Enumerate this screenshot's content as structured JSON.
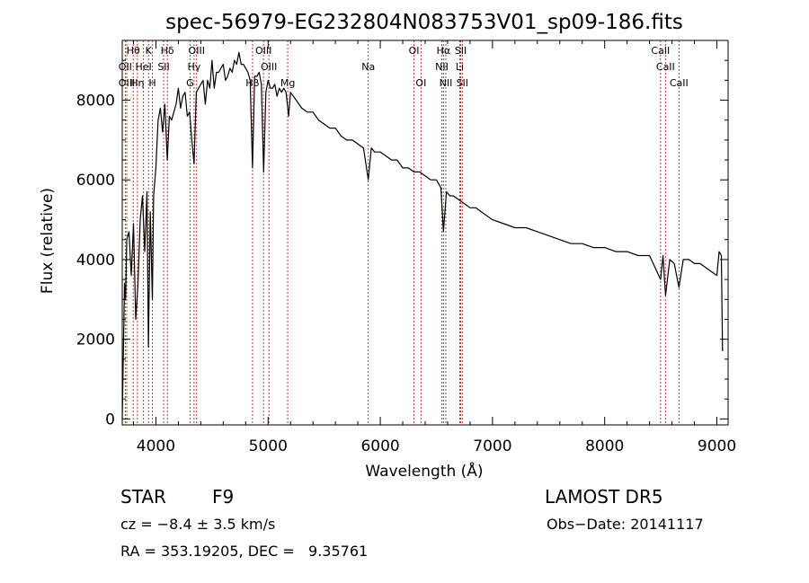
{
  "chart_data": {
    "type": "line",
    "title": "spec-56979-EG232804N083753V01_sp09-186.fits",
    "xlabel": "Wavelength (Å)",
    "ylabel": "Flux (relative)",
    "xlim": [
      3700,
      9100
    ],
    "ylim": [
      -150,
      9500
    ],
    "x_ticks": [
      4000,
      5000,
      6000,
      7000,
      8000,
      9000
    ],
    "y_ticks": [
      0,
      2000,
      4000,
      6000,
      8000
    ],
    "grid": false,
    "series": [
      {
        "x": [
          3700,
          3710,
          3720,
          3730,
          3740,
          3760,
          3780,
          3800,
          3820,
          3840,
          3860,
          3880,
          3900,
          3920,
          3933,
          3950,
          3968,
          3980,
          4000,
          4020,
          4040,
          4060,
          4080,
          4101,
          4120,
          4140,
          4160,
          4180,
          4200,
          4220,
          4240,
          4260,
          4280,
          4300,
          4320,
          4340,
          4360,
          4380,
          4400,
          4420,
          4440,
          4460,
          4480,
          4500,
          4520,
          4540,
          4560,
          4580,
          4600,
          4620,
          4640,
          4660,
          4680,
          4700,
          4720,
          4740,
          4760,
          4780,
          4800,
          4820,
          4840,
          4861,
          4880,
          4900,
          4920,
          4940,
          4960,
          4980,
          5000,
          5020,
          5040,
          5060,
          5080,
          5100,
          5120,
          5140,
          5160,
          5183,
          5200,
          5250,
          5300,
          5350,
          5400,
          5450,
          5500,
          5550,
          5600,
          5650,
          5700,
          5750,
          5800,
          5850,
          5893,
          5920,
          5950,
          6000,
          6050,
          6100,
          6150,
          6200,
          6250,
          6300,
          6350,
          6400,
          6450,
          6500,
          6540,
          6563,
          6590,
          6620,
          6650,
          6700,
          6750,
          6800,
          6850,
          6900,
          6950,
          7000,
          7100,
          7200,
          7300,
          7400,
          7500,
          7600,
          7700,
          7800,
          7900,
          8000,
          8100,
          8200,
          8300,
          8400,
          8498,
          8520,
          8542,
          8580,
          8620,
          8662,
          8700,
          8750,
          8800,
          8850,
          8900,
          8950,
          9000,
          9020,
          9040,
          9050
        ],
        "y": [
          0,
          1600,
          3400,
          3000,
          4500,
          4700,
          3600,
          4900,
          2500,
          3400,
          5000,
          5600,
          4200,
          5700,
          1800,
          5200,
          3000,
          5600,
          6300,
          7500,
          7800,
          7200,
          7900,
          6500,
          7600,
          7500,
          7700,
          7900,
          8300,
          7800,
          8100,
          8200,
          7600,
          7700,
          7000,
          6400,
          8200,
          8300,
          8400,
          8500,
          7900,
          8500,
          8300,
          9000,
          8300,
          8700,
          8700,
          8800,
          8900,
          8500,
          8600,
          8800,
          8700,
          9000,
          8900,
          9200,
          8900,
          8900,
          8800,
          8700,
          8500,
          6300,
          8600,
          8600,
          8700,
          8400,
          6200,
          8200,
          8500,
          8300,
          8300,
          8400,
          8100,
          8300,
          8200,
          8300,
          8200,
          7600,
          8200,
          8000,
          7800,
          7700,
          7700,
          7500,
          7400,
          7300,
          7300,
          7100,
          7000,
          7000,
          6900,
          6800,
          6000,
          6800,
          6700,
          6700,
          6600,
          6500,
          6500,
          6300,
          6300,
          6200,
          6200,
          6100,
          6000,
          6000,
          5800,
          4700,
          5700,
          5600,
          5600,
          5500,
          5400,
          5300,
          5300,
          5200,
          5100,
          5000,
          4900,
          4800,
          4800,
          4700,
          4600,
          4500,
          4400,
          4400,
          4300,
          4300,
          4200,
          4200,
          4100,
          4100,
          3500,
          4100,
          3100,
          4000,
          3900,
          3300,
          4000,
          4000,
          3900,
          3900,
          3800,
          3700,
          3600,
          4200,
          4100,
          1700
        ]
      }
    ],
    "line_markers": [
      {
        "label": "Hθ",
        "x": 3798,
        "row": 0
      },
      {
        "label": "OII",
        "x": 3727,
        "row": 1
      },
      {
        "label": "OIII",
        "x": 3740,
        "row": 2
      },
      {
        "label": "Hη",
        "x": 3835,
        "row": 2
      },
      {
        "label": "HeI",
        "x": 3889,
        "row": 1
      },
      {
        "label": "K",
        "x": 3934,
        "row": 0
      },
      {
        "label": "H",
        "x": 3969,
        "row": 2
      },
      {
        "label": "SII",
        "x": 4069,
        "row": 1
      },
      {
        "label": "Hδ",
        "x": 4102,
        "row": 0
      },
      {
        "label": "OIII",
        "x": 4363,
        "row": 0
      },
      {
        "label": "Hγ",
        "x": 4340,
        "row": 1
      },
      {
        "label": "G",
        "x": 4304,
        "row": 2
      },
      {
        "label": "OIII",
        "x": 4959,
        "row": 0
      },
      {
        "label": "OIII",
        "x": 5007,
        "row": 1
      },
      {
        "label": "Hβ",
        "x": 4861,
        "row": 2
      },
      {
        "label": "Mg",
        "x": 5175,
        "row": 2
      },
      {
        "label": "Na",
        "x": 5893,
        "row": 1
      },
      {
        "label": "OI",
        "x": 6300,
        "row": 0
      },
      {
        "label": "OI",
        "x": 6363,
        "row": 2
      },
      {
        "label": "Hα",
        "x": 6563,
        "row": 0
      },
      {
        "label": "NII",
        "x": 6548,
        "row": 1
      },
      {
        "label": "NII",
        "x": 6584,
        "row": 2
      },
      {
        "label": "SII",
        "x": 6717,
        "row": 0
      },
      {
        "label": "Li",
        "x": 6708,
        "row": 1
      },
      {
        "label": "SII",
        "x": 6731,
        "row": 2
      },
      {
        "label": "CaII",
        "x": 8498,
        "row": 0
      },
      {
        "label": "CaII",
        "x": 8542,
        "row": 1
      },
      {
        "label": "CaII",
        "x": 8662,
        "row": 2
      }
    ]
  },
  "footer": {
    "object_class": "STAR",
    "subclass": "F9",
    "survey": "LAMOST DR5",
    "cz": "cz = −8.4 ± 3.5 km/s",
    "obs_date": "Obs−Date: 20141117",
    "coords": "RA = 353.19205, DEC =   9.35761"
  }
}
